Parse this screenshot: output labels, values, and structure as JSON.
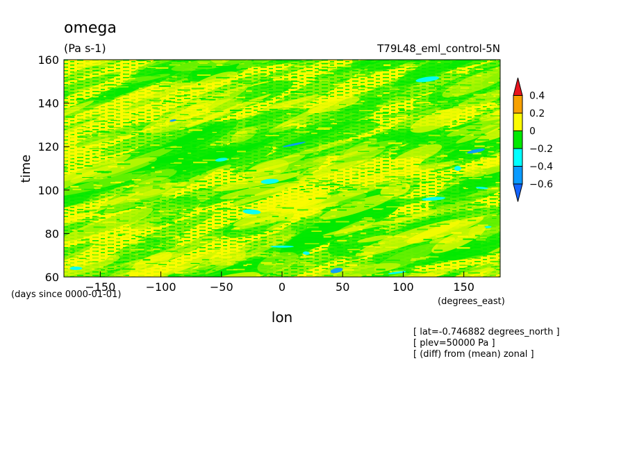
{
  "chart_data": {
    "type": "heatmap",
    "title": "omega",
    "units": "(Pa s-1)",
    "dataset_label": "T79L48_eml_control-5N",
    "xlabel": "lon",
    "xunits": "(degrees_east)",
    "ylabel": "time",
    "yunits": "(days since 0000-01-01)",
    "x_range": [
      -180,
      180
    ],
    "y_range": [
      60,
      160
    ],
    "x_ticks": [
      -150,
      -100,
      -50,
      0,
      50,
      100,
      150
    ],
    "y_ticks": [
      60,
      80,
      100,
      120,
      140,
      160
    ],
    "x_tick_labels": [
      "−150",
      "−100",
      "−50",
      "0",
      "50",
      "100",
      "150"
    ],
    "y_tick_labels": [
      "60",
      "80",
      "100",
      "120",
      "140",
      "160"
    ],
    "colorbar": {
      "levels": [
        0.4,
        0.2,
        0,
        -0.2,
        -0.4,
        -0.6
      ],
      "level_labels": [
        "0.4",
        "0.2",
        "0",
        "−0.2",
        "−0.4",
        "−0.6"
      ],
      "colors": [
        "#e8141e",
        "#f7a100",
        "#fbfb00",
        "#00e900",
        "#00ffff",
        "#0a9bff",
        "#1464ff"
      ],
      "extend": "both"
    },
    "dominant_values": {
      "positive_0_to_0.2": "#fbfb00",
      "negative_-0.2_to_0": "#00e900",
      "negative_-0.4_to_-0.2": "#00ffff",
      "negative_-0.6_to_-0.4": "#0a9bff"
    },
    "annotations": [
      "[ lat=-0.746882 degrees_north ]",
      "[ plev=50000 Pa ]",
      "[ (diff) from (mean) zonal ]"
    ]
  }
}
